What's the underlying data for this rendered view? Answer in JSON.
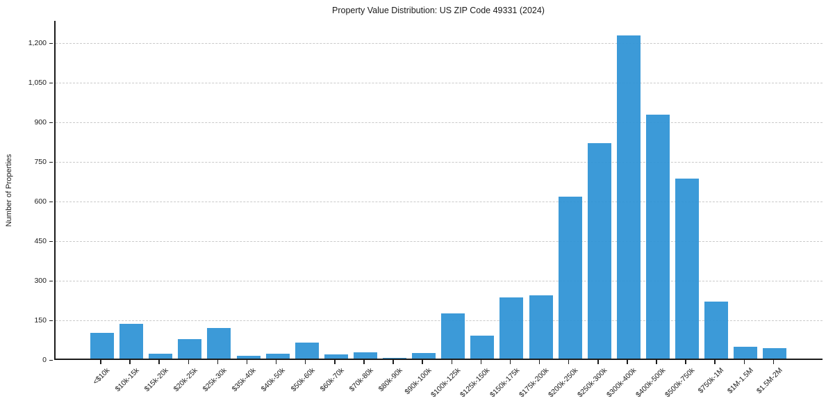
{
  "chart_data": {
    "type": "bar",
    "title": "Property Value Distribution: US ZIP Code 49331 (2024)",
    "xlabel": "",
    "ylabel": "Number of Properties",
    "categories": [
      "<$10k",
      "$10k-15k",
      "$15k-20k",
      "$20k-25k",
      "$25k-30k",
      "$35k-40k",
      "$40k-50k",
      "$50k-60k",
      "$60k-70k",
      "$70k-80k",
      "$80k-90k",
      "$90k-100k",
      "$100k-125k",
      "$125k-150k",
      "$150k-175k",
      "$175k-200k",
      "$200k-250k",
      "$250k-300k",
      "$300k-400k",
      "$400k-500k",
      "$500k-750k",
      "$750k-1M",
      "$1M-1.5M",
      "$1.5M-2M"
    ],
    "values": [
      97,
      132,
      19,
      74,
      117,
      11,
      19,
      60,
      17,
      24,
      4,
      22,
      172,
      87,
      232,
      240,
      613,
      815,
      1225,
      924,
      683,
      216,
      46,
      39
    ],
    "ylim": [
      0,
      1285
    ],
    "yticks": [
      0,
      150,
      300,
      450,
      600,
      750,
      900,
      1050,
      1200
    ],
    "ytick_labels": [
      "0",
      "150",
      "300",
      "450",
      "600",
      "750",
      "900",
      "1,050",
      "1,200"
    ],
    "grid": true,
    "grid_axis": "y",
    "grid_style": "dashed",
    "legend_position": "none",
    "bar_color": "#3094d6",
    "grid_color": "#c9c9c9",
    "axis_color": "#1a1a1a",
    "text_color": "#1a1a1a",
    "background_color": "#ffffff"
  }
}
